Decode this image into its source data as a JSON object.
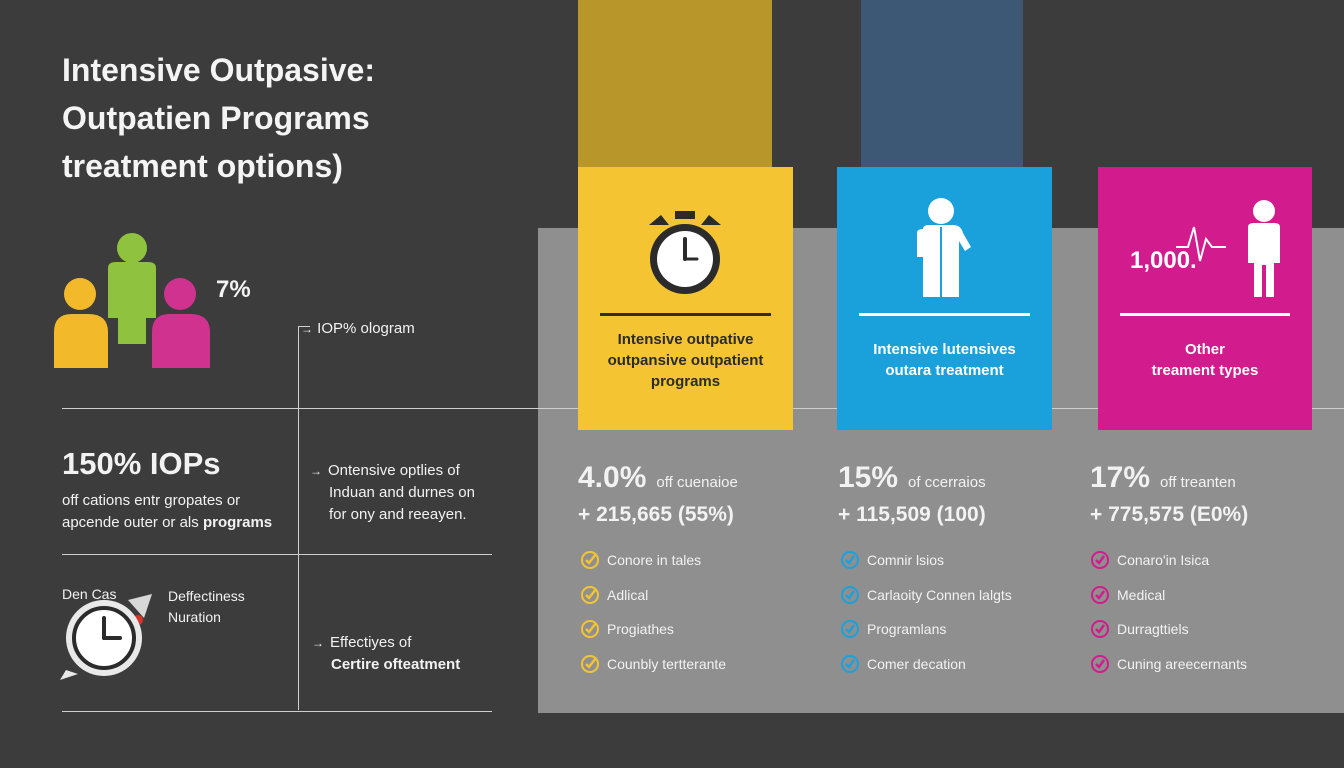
{
  "title": {
    "line1": "Intensive Outpasive:",
    "line2": "Outpatien Programs",
    "line3": "treatment options)"
  },
  "left": {
    "people_percent": "7%",
    "arrow1": "IOP% ologram",
    "big_stat": "150% IOPs",
    "stat_desc_line1": "off cations entr gropates or",
    "stat_desc_line2_a": "apcende outer or als ",
    "stat_desc_line2_b": "programs",
    "arrow2_line1": "Ontensive optlies of",
    "arrow2_line2": "Induan and durnes on",
    "arrow2_line3": "for ony and reeayen.",
    "bottom_label1": "Den Cas",
    "bottom_label2_line1": "Deffectiness",
    "bottom_label2_line2": "Nuration",
    "arrow3_line1": "Effectiyes of",
    "arrow3_line2": "Certire ofteatment"
  },
  "cards": [
    {
      "color": "#f5c433",
      "icon": "alarm-clock-icon",
      "label_line1": "Intensive outpative",
      "label_line2": "outpansive outpatient",
      "label_line3": "programs"
    },
    {
      "color": "#1aa1dc",
      "icon": "doctor-icon",
      "label_line1": "Intensive lutensives",
      "label_line2": "outara treatment"
    },
    {
      "color": "#d21b8c",
      "icon": "person-heartbeat-icon",
      "icon_text": "1,000.",
      "label_line1": "Other",
      "label_line2": "treament types"
    }
  ],
  "columns": [
    {
      "pct": "4.0%",
      "pct_desc": "off cuenaioe",
      "amount": "+ 215,665 (55%)",
      "check_color": "#f5c433",
      "checks": [
        "Conore in tales",
        "Adlical",
        "Progiathes",
        "Counbly tertterante"
      ]
    },
    {
      "pct": "15%",
      "pct_desc": "of ccerraios",
      "amount": "+ 115,509 (100)",
      "check_color": "#1aa1dc",
      "checks": [
        "Comnir lsios",
        "Carlaoity Connen lalgts",
        "Programlans",
        "Comer decation"
      ]
    },
    {
      "pct": "17%",
      "pct_desc": "off treanten",
      "amount": "+ 775,575 (E0%)",
      "check_color": "#d21b8c",
      "checks": [
        "Conaro'in Isica",
        "Medical",
        "Durragttiels",
        "Cuning areecernants"
      ]
    }
  ]
}
